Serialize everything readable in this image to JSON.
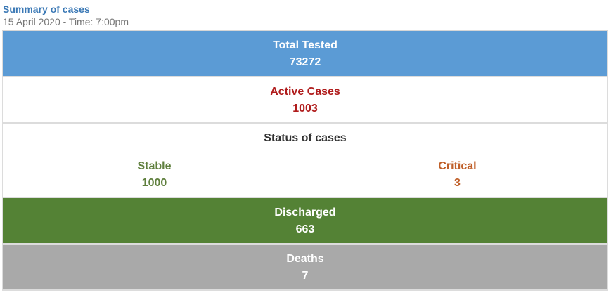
{
  "header": {
    "title": "Summary of cases",
    "subtitle": "15 April 2020 - Time: 7:00pm"
  },
  "rows": {
    "total_tested": {
      "label": "Total Tested",
      "value": "73272"
    },
    "active_cases": {
      "label": "Active Cases",
      "value": "1003"
    },
    "status": {
      "label": "Status of cases",
      "stable": {
        "label": "Stable",
        "value": "1000"
      },
      "critical": {
        "label": "Critical",
        "value": "3"
      }
    },
    "discharged": {
      "label": "Discharged",
      "value": "663"
    },
    "deaths": {
      "label": "Deaths",
      "value": "7"
    }
  },
  "colors": {
    "title": "#3a78b5",
    "tested_bg": "#5b9bd5",
    "active_text": "#b01c1c",
    "stable_text": "#5f7f3d",
    "critical_text": "#c0602a",
    "discharged_bg": "#548235",
    "deaths_bg": "#a9a9a9"
  }
}
